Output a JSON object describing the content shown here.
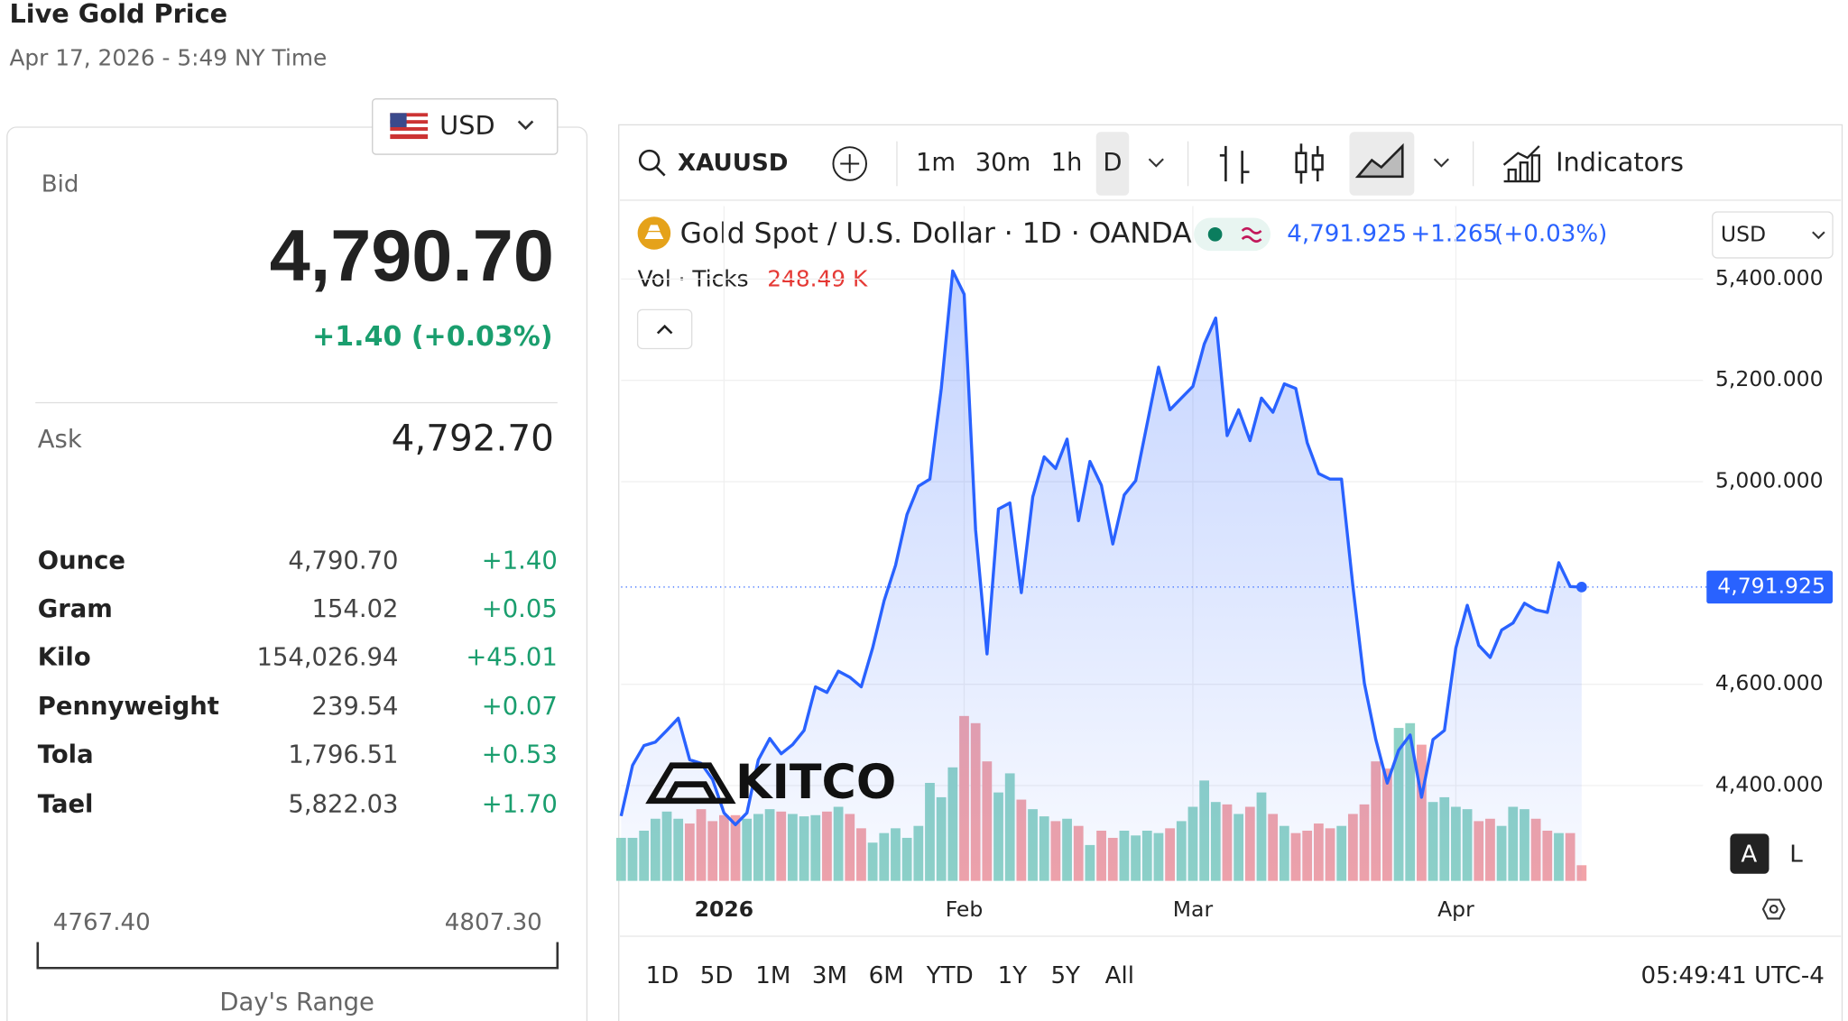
{
  "header": {
    "title": "Live Gold Price",
    "timestamp": "Apr 17, 2026 - 5:49 NY Time"
  },
  "currency_selector": "USD",
  "bid": {
    "label": "Bid",
    "price": "4,790.70",
    "change": "+1.40 (+0.03%)"
  },
  "ask": {
    "label": "Ask",
    "price": "4,792.70"
  },
  "units": {
    "rows": [
      [
        "Ounce",
        "4,790.70",
        "+1.40"
      ],
      [
        "Gram",
        "154.02",
        "+0.05"
      ],
      [
        "Kilo",
        "154,026.94",
        "+45.01"
      ],
      [
        "Pennyweight",
        "239.54",
        "+0.07"
      ],
      [
        "Tola",
        "1,796.51",
        "+0.53"
      ],
      [
        "Tael",
        "5,822.03",
        "+1.70"
      ]
    ]
  },
  "day_range": {
    "low": "4767.40",
    "high": "4807.30",
    "label": "Day's Range"
  },
  "widget": {
    "symbol": "XAUUSD",
    "intervals": [
      "1m",
      "30m",
      "1h",
      "D"
    ],
    "indicators": "Indicators",
    "currency": "USD",
    "logo": "KITCO",
    "scale_buttons": [
      "A",
      "L"
    ],
    "ranges": [
      "1D",
      "5D",
      "1M",
      "3M",
      "6M",
      "YTD",
      "1Y",
      "5Y",
      "All"
    ],
    "clock": "05:49:41 UTC-4"
  },
  "chart_data": {
    "type": "line",
    "title": "Gold Spot / U.S. Dollar · 1D · OANDA",
    "quote": "4,791.925",
    "change": "+1.265",
    "change_pct": "(+0.03%)",
    "volume_title": "Vol · Ticks",
    "volume_value": "248.49 K",
    "categories": [
      null,
      null,
      null,
      null,
      null,
      null,
      null,
      null,
      null,
      "2026",
      null,
      null,
      null,
      null,
      null,
      null,
      null,
      null,
      null,
      null,
      null,
      null,
      null,
      null,
      null,
      null,
      null,
      null,
      null,
      null,
      "Feb",
      null,
      null,
      null,
      null,
      null,
      null,
      null,
      null,
      null,
      null,
      null,
      null,
      null,
      null,
      null,
      null,
      null,
      null,
      null,
      "Mar",
      null,
      null,
      null,
      null,
      null,
      null,
      null,
      null,
      null,
      null,
      null,
      null,
      null,
      null,
      null,
      null,
      null,
      null,
      null,
      null,
      null,
      null,
      "Apr",
      null,
      null,
      null,
      null,
      null,
      null,
      null,
      null,
      null,
      null,
      null
    ],
    "values": [
      4340,
      4440,
      4479,
      4486,
      4509,
      4533,
      4451,
      4444,
      4412,
      4346,
      4323,
      4346,
      4451,
      4493,
      4463,
      4481,
      4509,
      4595,
      4584,
      4626,
      4614,
      4595,
      4672,
      4765,
      4835,
      4935,
      4991,
      5005,
      5184,
      5416,
      5370,
      4905,
      4660,
      4946,
      4958,
      4781,
      4970,
      5049,
      5026,
      5084,
      4923,
      5040,
      4993,
      4877,
      4974,
      5002,
      5114,
      5226,
      5142,
      5165,
      5188,
      5272,
      5323,
      5091,
      5142,
      5081,
      5165,
      5137,
      5193,
      5184,
      5077,
      5016,
      5005,
      5005,
      4793,
      4602,
      4491,
      4405,
      4470,
      4500,
      4377,
      4491,
      4509,
      4672,
      4756,
      4677,
      4653,
      4707,
      4721,
      4760,
      4747,
      4742,
      4840,
      4793,
      4791.925
    ],
    "last_value_label": "4,791.925",
    "color": "#2962ff",
    "volumes": [
      684,
      684,
      798,
      988,
      1102,
      988,
      912,
      1140,
      950,
      1045,
      1045,
      988,
      1064,
      1140,
      1102,
      1064,
      1026,
      1045,
      1102,
      1178,
      1064,
      836,
      608,
      760,
      836,
      684,
      874,
      1558,
      1330,
      1805,
      2622,
      2508,
      1900,
      1406,
      1710,
      1292,
      1140,
      1026,
      950,
      988,
      874,
      570,
      798,
      684,
      798,
      722,
      798,
      760,
      836,
      950,
      1178,
      1596,
      1254,
      1216,
      1064,
      1178,
      1406,
      1064,
      874,
      760,
      798,
      912,
      836,
      874,
      1064,
      1216,
      1900,
      1786,
      2432,
      2508,
      2166,
      1254,
      1330,
      1178,
      1140,
      950,
      988,
      874,
      1178,
      1140,
      988,
      798,
      760,
      760,
      248.49
    ],
    "volume_colors": {
      "up": "#8fd3c6",
      "down": "#f2a3a8"
    },
    "ylim": [
      4212,
      5544
    ],
    "yticks": [
      {
        "value": 4400,
        "label": "4,400.000"
      },
      {
        "value": 4600,
        "label": "4,600.000"
      },
      {
        "value": 5000,
        "label": "5,000.000"
      },
      {
        "value": 5200,
        "label": "5,200.000"
      },
      {
        "value": 5400,
        "label": "5,400.000"
      }
    ],
    "grid": true
  }
}
